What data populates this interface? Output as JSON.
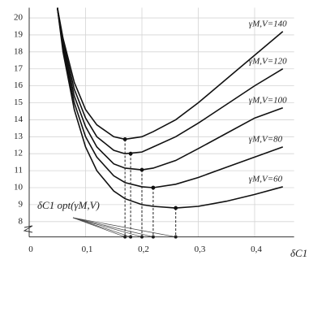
{
  "chart_data": {
    "type": "line",
    "x_label": "δC1",
    "annotation": "δC1 opt(γM,V)",
    "xlim": [
      0,
      0.47
    ],
    "ylim": [
      7.1,
      20.6
    ],
    "xticks": [
      0,
      {
        "value": 0.1,
        "label": "0,1"
      },
      {
        "value": 0.2,
        "label": "0,2"
      },
      {
        "value": 0.3,
        "label": "0,3"
      },
      {
        "value": 0.4,
        "label": "0,4"
      }
    ],
    "yticks": [
      8,
      9,
      10,
      11,
      12,
      13,
      14,
      15,
      16,
      17,
      18,
      19,
      20
    ],
    "grid": true,
    "x": [
      0.05,
      0.06,
      0.08,
      0.1,
      0.12,
      0.15,
      0.17,
      0.2,
      0.22,
      0.26,
      0.3,
      0.35,
      0.4,
      0.45
    ],
    "series": [
      {
        "name": "γM,V=140",
        "color": "#111111",
        "values": [
          20.6,
          18.8,
          16.2,
          14.6,
          13.7,
          13.0,
          12.85,
          13.0,
          13.3,
          14.0,
          15.0,
          16.4,
          17.8,
          19.2
        ]
      },
      {
        "name": "γM,V=120",
        "color": "#111111",
        "values": [
          20.6,
          18.6,
          15.8,
          14.1,
          13.0,
          12.2,
          12.0,
          12.1,
          12.4,
          13.0,
          13.8,
          14.9,
          16.0,
          17.0
        ]
      },
      {
        "name": "γM,V=100",
        "color": "#111111",
        "values": [
          20.6,
          18.4,
          15.4,
          13.6,
          12.4,
          11.4,
          11.15,
          11.05,
          11.15,
          11.6,
          12.3,
          13.2,
          14.1,
          14.7
        ]
      },
      {
        "name": "γM,V=80",
        "color": "#111111",
        "values": [
          20.6,
          18.2,
          15.0,
          13.0,
          11.8,
          10.7,
          10.3,
          10.05,
          10.0,
          10.2,
          10.6,
          11.2,
          11.8,
          12.4
        ]
      },
      {
        "name": "γM,V=60",
        "color": "#111111",
        "values": [
          20.6,
          18.0,
          14.6,
          12.4,
          11.0,
          9.8,
          9.35,
          9.0,
          8.9,
          8.8,
          8.9,
          9.2,
          9.6,
          10.05
        ]
      }
    ],
    "optimum": {
      "x": [
        0.17,
        0.18,
        0.2,
        0.22,
        0.26
      ],
      "y": [
        12.85,
        12.0,
        11.05,
        10.0,
        8.8
      ]
    }
  }
}
